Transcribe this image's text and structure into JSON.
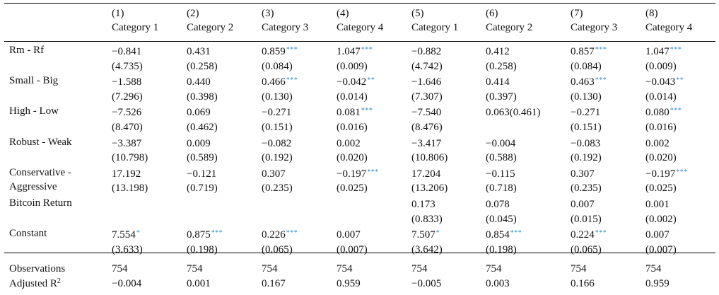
{
  "columns": [
    {
      "num": "(1)",
      "cat": "Category 1"
    },
    {
      "num": "(2)",
      "cat": "Category 2"
    },
    {
      "num": "(3)",
      "cat": "Category 3"
    },
    {
      "num": "(4)",
      "cat": "Category 4"
    },
    {
      "num": "(5)",
      "cat": "Category 1"
    },
    {
      "num": "(6)",
      "cat": "Category 2"
    },
    {
      "num": "(7)",
      "cat": "Category 3"
    },
    {
      "num": "(8)",
      "cat": "Category 4"
    }
  ],
  "rows": [
    {
      "label": [
        "Rm - Rf",
        ""
      ],
      "cells": [
        [
          "−0.841",
          "",
          "(4.735)"
        ],
        [
          "0.431",
          "",
          "(0.258)"
        ],
        [
          "0.859",
          "***",
          "(0.084)"
        ],
        [
          "1.047",
          "***",
          "(0.009)"
        ],
        [
          "−0.882",
          "",
          "(4.742)"
        ],
        [
          "0.412",
          "",
          "(0.258)"
        ],
        [
          "0.857",
          "***",
          "(0.084)"
        ],
        [
          "1.047",
          "***",
          "(0.009)"
        ]
      ]
    },
    {
      "label": [
        "Small - Big",
        ""
      ],
      "cells": [
        [
          "−1.588",
          "",
          "(7.296)"
        ],
        [
          "0.440",
          "",
          "(0.398)"
        ],
        [
          "0.466",
          "***",
          "(0.130)"
        ],
        [
          "−0.042",
          "**",
          "(0.014)"
        ],
        [
          "−1.646",
          "",
          "(7.307)"
        ],
        [
          "0.414",
          "",
          "(0.397)"
        ],
        [
          "0.463",
          "***",
          "(0.130)"
        ],
        [
          "−0.043",
          "**",
          "(0.014)"
        ]
      ]
    },
    {
      "label": [
        "High - Low",
        ""
      ],
      "cells": [
        [
          "−7.526",
          "",
          "(8.470)"
        ],
        [
          "0.069",
          "",
          "(0.462)"
        ],
        [
          "−0.271",
          "",
          "(0.151)"
        ],
        [
          "0.081",
          "***",
          "(0.016)"
        ],
        [
          "−7.540",
          "",
          "(8.476)"
        ],
        [
          "0.063(0.461)",
          "",
          ""
        ],
        [
          "−0.271",
          "",
          "(0.151)"
        ],
        [
          "0.080",
          "***",
          "(0.016)"
        ]
      ]
    },
    {
      "label": [
        "Robust - Weak",
        ""
      ],
      "cells": [
        [
          "−3.387",
          "",
          "(10.798)"
        ],
        [
          "0.009",
          "",
          "(0.589)"
        ],
        [
          "−0.082",
          "",
          "(0.192)"
        ],
        [
          "0.002",
          "",
          "(0.020)"
        ],
        [
          "−3.417",
          "",
          "(10.806)"
        ],
        [
          "−0.004",
          "",
          "(0.588)"
        ],
        [
          "−0.083",
          "",
          "(0.192)"
        ],
        [
          "0.002",
          "",
          "(0.020)"
        ]
      ]
    },
    {
      "label": [
        "Conservative -",
        "Aggressive"
      ],
      "cells": [
        [
          "17.192",
          "",
          "(13.198)"
        ],
        [
          "−0.121",
          "",
          "(0.719)"
        ],
        [
          "0.307",
          "",
          "(0.235)"
        ],
        [
          "−0.197",
          "***",
          "(0.025)"
        ],
        [
          "17.204",
          "",
          "(13.206)"
        ],
        [
          "−0.115",
          "",
          "(0.718)"
        ],
        [
          "0.307",
          "",
          "(0.235)"
        ],
        [
          "−0.197",
          "***",
          "(0.025)"
        ]
      ]
    },
    {
      "label": [
        "Bitcoin Return",
        ""
      ],
      "cells": [
        [
          "",
          "",
          ""
        ],
        [
          "",
          "",
          ""
        ],
        [
          "",
          "",
          ""
        ],
        [
          "",
          "",
          ""
        ],
        [
          "0.173",
          "",
          "(0.833)"
        ],
        [
          "0.078",
          "",
          "(0.045)"
        ],
        [
          "0.007",
          "",
          "(0.015)"
        ],
        [
          "0.001",
          "",
          "(0.002)"
        ]
      ]
    },
    {
      "label": [
        "Constant",
        ""
      ],
      "cells": [
        [
          "7.554",
          "*",
          "(3.633)"
        ],
        [
          "0.875",
          "***",
          "(0.198)"
        ],
        [
          "0.226",
          "***",
          "(0.065)"
        ],
        [
          "0.007",
          "",
          "(0.007)"
        ],
        [
          "7.507",
          "*",
          "(3.642)"
        ],
        [
          "0.854",
          "***",
          "(0.198)"
        ],
        [
          "0.224",
          "***",
          "(0.065)"
        ],
        [
          "0.007",
          "",
          "(0.007)"
        ]
      ]
    }
  ],
  "footer": {
    "observations_label": "Observations",
    "observations": [
      "754",
      "754",
      "754",
      "754",
      "754",
      "754",
      "754",
      "754"
    ],
    "adjr2_label": "Adjusted R",
    "adjr2_sup": "2",
    "adjr2": [
      "−0.004",
      "0.001",
      "0.167",
      "0.959",
      "−0.005",
      "0.003",
      "0.166",
      "0.959"
    ]
  },
  "colors": {
    "significance_stars": "#2f8cc8",
    "text": "#111111",
    "rules": "#000000"
  }
}
